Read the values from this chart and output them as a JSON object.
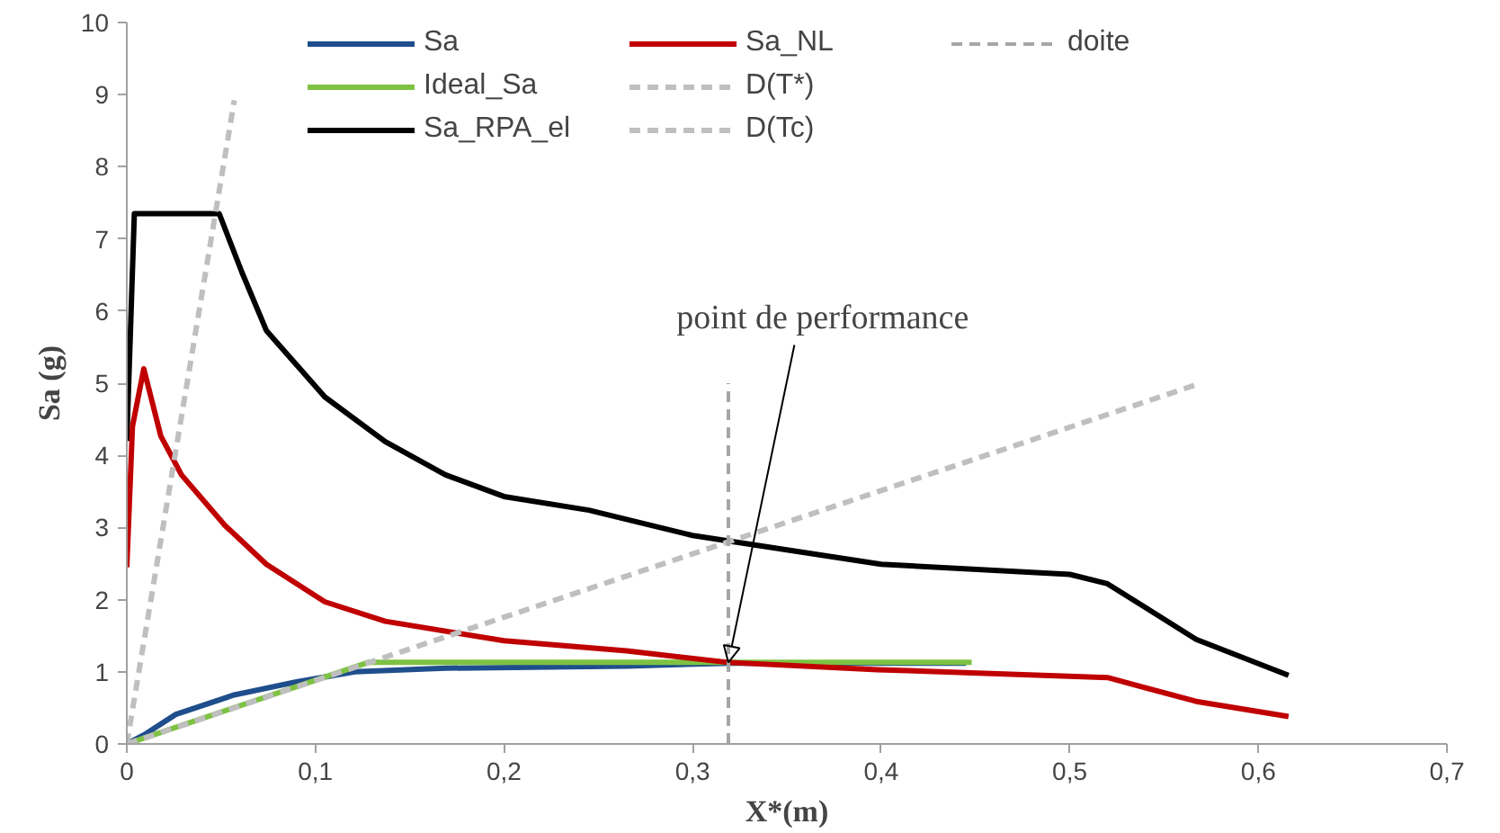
{
  "chart_data": {
    "type": "line",
    "xlabel": "X*(m)",
    "ylabel": "Sa (g)",
    "xlim": [
      0,
      0.7
    ],
    "ylim": [
      0,
      10
    ],
    "xticks": [
      0,
      {
        "value": 0.1,
        "label": "0,1"
      },
      {
        "value": 0.2,
        "label": "0,2"
      },
      {
        "value": 0.3,
        "label": "0,3"
      },
      {
        "value": 0.4,
        "label": "0,4"
      },
      {
        "value": 0.5,
        "label": "0,5"
      },
      {
        "value": 0.6,
        "label": "0,6"
      },
      {
        "value": 0.7,
        "label": "0,7"
      }
    ],
    "yticks": [
      0,
      1,
      2,
      3,
      4,
      5,
      6,
      7,
      8,
      9,
      10
    ],
    "grid": false,
    "legend": "top",
    "marker": "none",
    "series": [
      {
        "name": "Sa",
        "color": "#1f4e8c",
        "x": [
          0,
          0.01,
          0.026,
          0.057,
          0.09,
          0.121,
          0.169,
          0.265,
          0.32,
          0.445
        ],
        "values": [
          0,
          0.14,
          0.41,
          0.68,
          0.86,
          1.0,
          1.05,
          1.08,
          1.12,
          1.12
        ]
      },
      {
        "name": "Ideal_Sa",
        "color": "#7dc242",
        "x": [
          0,
          0.128,
          0.448
        ],
        "values": [
          0,
          1.13,
          1.13
        ]
      },
      {
        "name": "Sa_RPA_el",
        "color": "#000000",
        "x": [
          0,
          0.004,
          0.049,
          0.061,
          0.074,
          0.105,
          0.137,
          0.169,
          0.2,
          0.245,
          0.3,
          0.4,
          0.5,
          0.52,
          0.567,
          0.616
        ],
        "values": [
          4.2,
          7.35,
          7.35,
          6.54,
          5.73,
          4.81,
          4.19,
          3.73,
          3.43,
          3.24,
          2.89,
          2.49,
          2.35,
          2.22,
          1.45,
          0.95
        ]
      },
      {
        "name": "Sa_NL",
        "color": "#c00000",
        "x": [
          0,
          0.003,
          0.009,
          0.018,
          0.029,
          0.052,
          0.074,
          0.105,
          0.137,
          0.2,
          0.265,
          0.319,
          0.398,
          0.52,
          0.567,
          0.616
        ],
        "values": [
          2.45,
          4.4,
          5.2,
          4.27,
          3.73,
          3.03,
          2.49,
          1.97,
          1.7,
          1.43,
          1.29,
          1.13,
          1.03,
          0.92,
          0.59,
          0.38
        ]
      },
      {
        "name": "D(T*)",
        "color": "#bfbfbf",
        "line_style": "dashed",
        "x": [
          0,
          0.057
        ],
        "values": [
          0,
          8.92
        ]
      },
      {
        "name": "D(Tc)",
        "color": "#bfbfbf",
        "line_style": "dashed",
        "x": [
          0,
          0.566
        ],
        "values": [
          0,
          4.97
        ]
      },
      {
        "name": "doite",
        "color": "#a6a6a6",
        "line_style": "dashed",
        "x": [
          0.319,
          0.319
        ],
        "values": [
          0,
          5.0
        ]
      }
    ],
    "annotations": [
      {
        "text": "point de performance",
        "x": 0.319,
        "y": 1.13
      }
    ]
  }
}
